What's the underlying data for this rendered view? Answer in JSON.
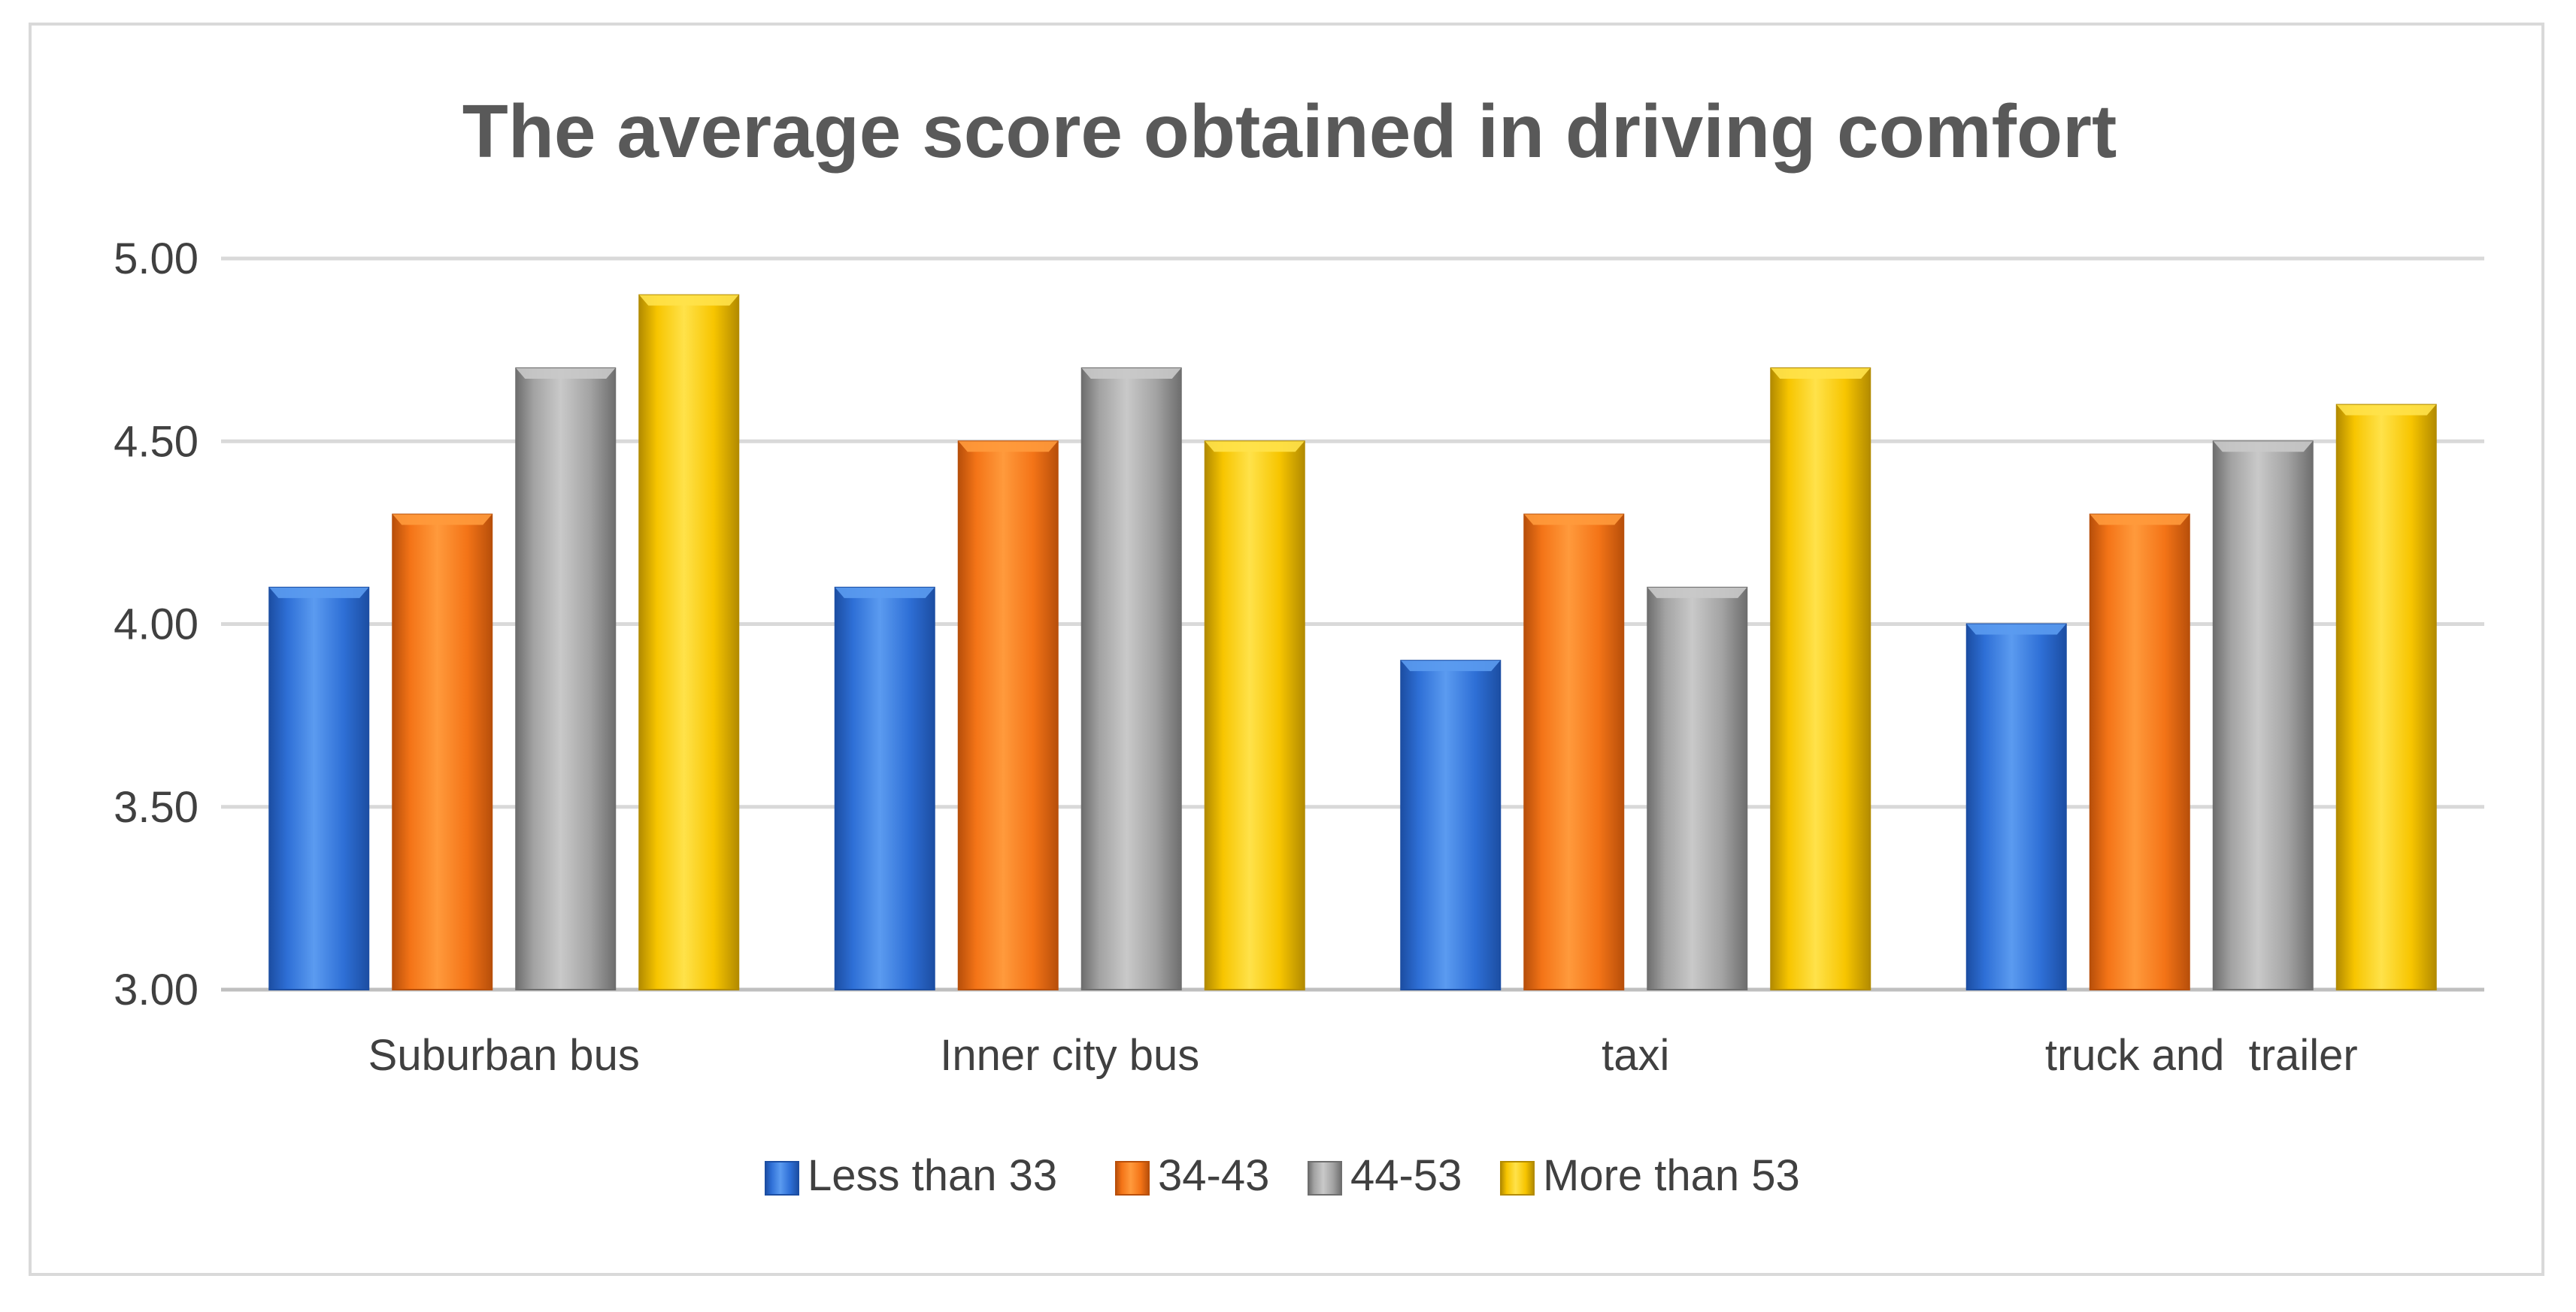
{
  "chart_data": {
    "type": "bar",
    "title": "The average score obtained in driving comfort",
    "xlabel": "",
    "ylabel": "",
    "ylim": [
      3.0,
      5.0
    ],
    "yticks": [
      "3.00",
      "3.50",
      "4.00",
      "4.50",
      "5.00"
    ],
    "ytick_values": [
      3.0,
      3.5,
      4.0,
      4.5,
      5.0
    ],
    "grid": true,
    "legend_position": "bottom",
    "categories": [
      "Suburban bus",
      "Inner city bus",
      "taxi",
      "truck and  trailer"
    ],
    "series": [
      {
        "name": "Less than 33",
        "values": [
          4.1,
          4.1,
          3.9,
          4.0
        ]
      },
      {
        "name": "34-43",
        "values": [
          4.3,
          4.5,
          4.3,
          4.3
        ]
      },
      {
        "name": "44-53",
        "values": [
          4.7,
          4.7,
          4.1,
          4.5
        ]
      },
      {
        "name": "More than 53",
        "values": [
          4.9,
          4.5,
          4.7,
          4.6
        ]
      }
    ],
    "colors": {
      "series": [
        {
          "light": "#5b9bf0",
          "mid": "#2e6fd6",
          "dark": "#1c4ea3"
        },
        {
          "light": "#ff9a3c",
          "mid": "#f47417",
          "dark": "#b84f0a"
        },
        {
          "light": "#c9c9c9",
          "mid": "#a3a3a3",
          "dark": "#6e6e6e"
        },
        {
          "light": "#ffe24a",
          "mid": "#f7c500",
          "dark": "#b38b00"
        }
      ],
      "title": "#595959",
      "text": "#404040",
      "grid": "#d9d9d9",
      "axis": "#bfbfbf"
    }
  }
}
